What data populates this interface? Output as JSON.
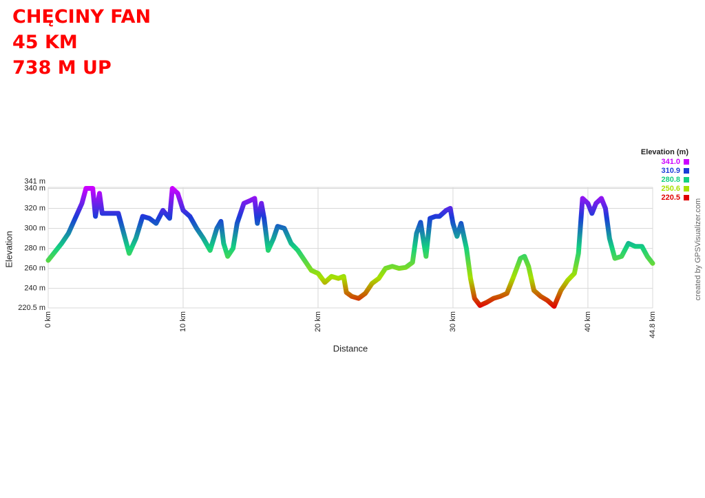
{
  "header": {
    "lines": [
      "CHĘCINY FAN",
      "45 KM",
      "738 M UP"
    ]
  },
  "chart_data": {
    "type": "line",
    "xlabel": "Distance",
    "ylabel": "Elevation",
    "credit": "created by GPSVisualizer.com",
    "xlim": [
      0,
      44.8
    ],
    "ylim": [
      220.5,
      341
    ],
    "xticks": [
      {
        "value": 0,
        "label": "0 km"
      },
      {
        "value": 10,
        "label": "10 km"
      },
      {
        "value": 20,
        "label": "20 km"
      },
      {
        "value": 30,
        "label": "30 km"
      },
      {
        "value": 40,
        "label": "40 km"
      },
      {
        "value": 44.8,
        "label": "44.8 km"
      }
    ],
    "yticks": [
      {
        "value": 220.5,
        "label": "220.5 m"
      },
      {
        "value": 240,
        "label": "240 m"
      },
      {
        "value": 260,
        "label": "260 m"
      },
      {
        "value": 280,
        "label": "280 m"
      },
      {
        "value": 300,
        "label": "300 m"
      },
      {
        "value": 320,
        "label": "320 m"
      },
      {
        "value": 340,
        "label": "340 m"
      },
      {
        "value": 341,
        "label": "341 m"
      }
    ],
    "grid": true,
    "legend": {
      "title": "Elevation (m)",
      "entries": [
        {
          "value": 341.0,
          "label": "341.0",
          "color": "#cc00ff"
        },
        {
          "value": 310.9,
          "label": "310.9",
          "color": "#1a3cd8"
        },
        {
          "value": 280.8,
          "label": "280.8",
          "color": "#14d080"
        },
        {
          "value": 250.6,
          "label": "250.6",
          "color": "#a8e000"
        },
        {
          "value": 220.5,
          "label": "220.5",
          "color": "#e00000"
        }
      ]
    },
    "x": [
      0,
      1,
      1.5,
      2,
      2.5,
      2.8,
      3.3,
      3.5,
      3.8,
      4,
      5.2,
      5.5,
      6,
      6.5,
      7,
      7.5,
      8,
      8.5,
      9,
      9.2,
      9.6,
      10,
      10.5,
      11,
      11.5,
      12,
      12.5,
      12.8,
      13,
      13.3,
      13.7,
      14,
      14.5,
      15,
      15.3,
      15.5,
      15.8,
      16,
      16.3,
      16.7,
      17,
      17.5,
      18,
      18.5,
      19,
      19.5,
      20,
      20.5,
      21,
      21.5,
      21.9,
      22.1,
      22.5,
      23,
      23.5,
      24,
      24.5,
      25,
      25.5,
      26,
      26.5,
      27,
      27.3,
      27.6,
      28,
      28.3,
      28.7,
      29,
      29.5,
      29.8,
      30,
      30.3,
      30.6,
      31,
      31.3,
      31.6,
      32,
      32.5,
      33,
      33.5,
      34,
      34.5,
      35,
      35.3,
      35.6,
      36,
      36.5,
      37,
      37.5,
      38,
      38.5,
      39,
      39.3,
      39.6,
      40,
      40.3,
      40.6,
      41,
      41.3,
      41.6,
      42,
      42.5,
      43,
      43.5,
      44,
      44.4,
      44.8
    ],
    "values": [
      268,
      285,
      295,
      310,
      325,
      340,
      340,
      312,
      335,
      315,
      315,
      300,
      275,
      290,
      312,
      310,
      305,
      318,
      310,
      340,
      335,
      318,
      312,
      300,
      290,
      278,
      300,
      307,
      285,
      272,
      280,
      305,
      325,
      328,
      330,
      305,
      325,
      310,
      278,
      290,
      302,
      300,
      285,
      278,
      268,
      258,
      255,
      246,
      252,
      250,
      252,
      236,
      232,
      230,
      235,
      245,
      250,
      260,
      262,
      260,
      261,
      266,
      295,
      306,
      272,
      310,
      312,
      312,
      318,
      320,
      305,
      292,
      305,
      280,
      250,
      230,
      223,
      226,
      230,
      232,
      235,
      252,
      270,
      272,
      262,
      238,
      232,
      228,
      222,
      238,
      248,
      255,
      275,
      330,
      325,
      315,
      325,
      330,
      320,
      290,
      270,
      272,
      285,
      282,
      282,
      272,
      265
    ]
  }
}
